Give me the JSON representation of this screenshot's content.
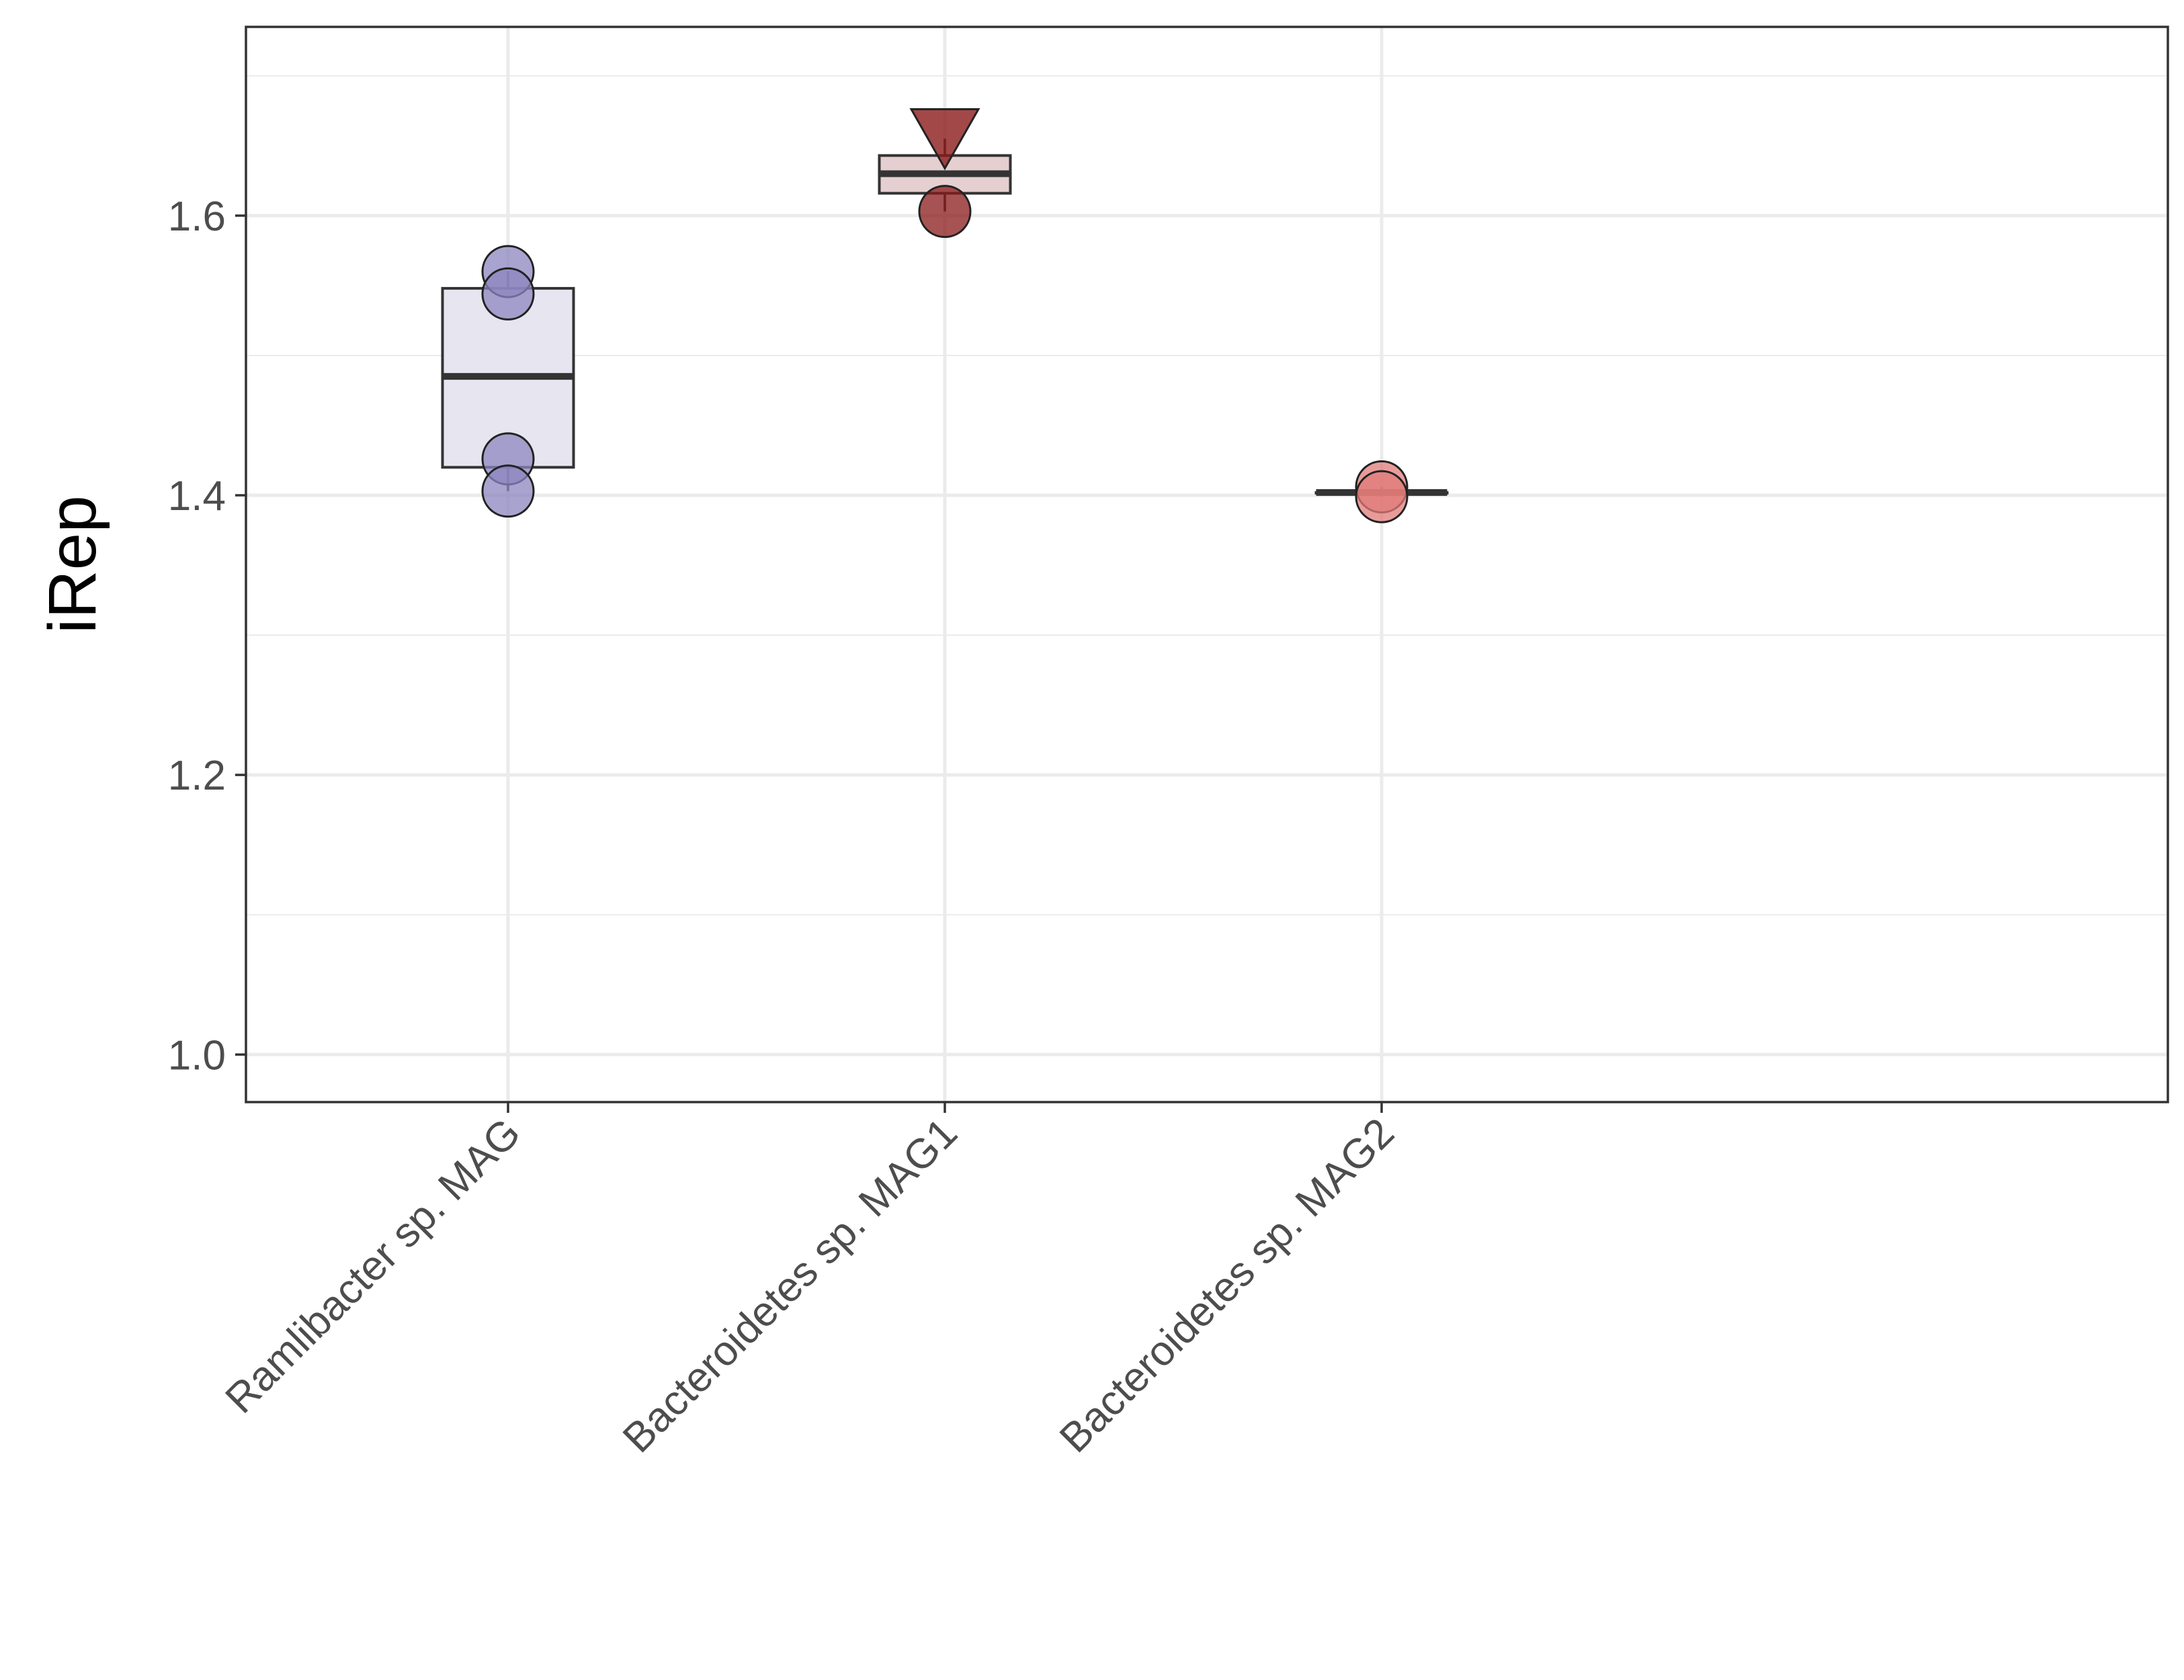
{
  "chart_data": {
    "type": "box",
    "ylabel": "iRep",
    "xlabel": "",
    "ylim": [
      0.966,
      1.735
    ],
    "y_ticks": [
      "1.0",
      "1.2",
      "1.4",
      "1.6"
    ],
    "y_minor_ticks": [
      1.1,
      1.3,
      1.5,
      1.7
    ],
    "grid": true,
    "categories": [
      "Ramlibacter sp. MAG",
      "Bacteroidetes sp. MAG1",
      "Bacteroidetes sp. MAG2"
    ],
    "boxes": [
      {
        "category": "Ramlibacter sp. MAG",
        "q1": 1.42,
        "median": 1.485,
        "q3": 1.548,
        "whisker_low": 1.403,
        "whisker_high": 1.56,
        "fill": "#e7e5f0",
        "point_color": "#8c86bf"
      },
      {
        "category": "Bacteroidetes sp. MAG1",
        "q1": 1.616,
        "median": 1.63,
        "q3": 1.643,
        "whisker_low": 1.603,
        "whisker_high": 1.655,
        "fill": "#e6cfd0",
        "point_color": "#8b1a1a"
      },
      {
        "category": "Bacteroidetes sp. MAG2",
        "q1": 1.402,
        "median": 1.402,
        "q3": 1.402,
        "whisker_low": 1.399,
        "whisker_high": 1.406,
        "fill": "#f2c4c1",
        "point_color": "#e07b78"
      }
    ],
    "points": [
      {
        "category": "Ramlibacter sp. MAG",
        "y": 1.56,
        "shape": "circle"
      },
      {
        "category": "Ramlibacter sp. MAG",
        "y": 1.544,
        "shape": "circle"
      },
      {
        "category": "Ramlibacter sp. MAG",
        "y": 1.426,
        "shape": "circle"
      },
      {
        "category": "Ramlibacter sp. MAG",
        "y": 1.403,
        "shape": "circle"
      },
      {
        "category": "Bacteroidetes sp. MAG1",
        "y": 1.603,
        "shape": "circle"
      },
      {
        "category": "Bacteroidetes sp. MAG1",
        "y": 1.655,
        "shape": "triangle-down"
      },
      {
        "category": "Bacteroidetes sp. MAG2",
        "y": 1.406,
        "shape": "circle"
      },
      {
        "category": "Bacteroidetes sp. MAG2",
        "y": 1.399,
        "shape": "circle"
      }
    ]
  }
}
